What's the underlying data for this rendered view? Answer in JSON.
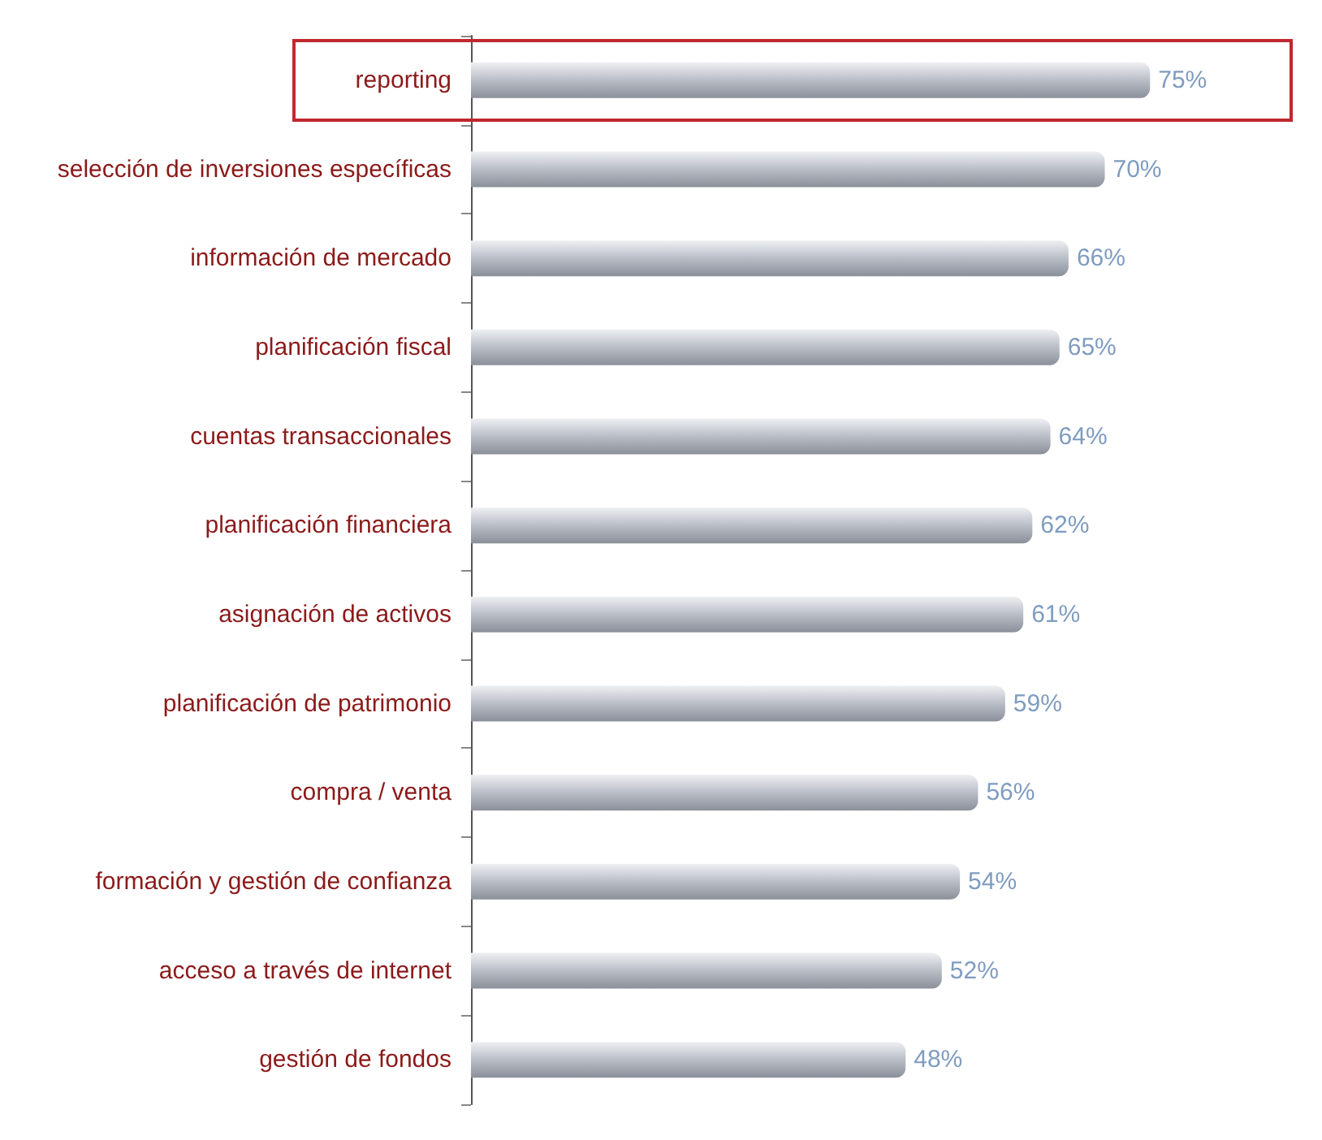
{
  "chart_data": {
    "type": "bar",
    "orientation": "horizontal",
    "categories": [
      "reporting",
      "selección de inversiones específicas",
      "información de mercado",
      "planificación fiscal",
      "cuentas transaccionales",
      "planificación financiera",
      "asignación de activos",
      "planificación de patrimonio",
      "compra / venta",
      "formación y gestión de confianza",
      "acceso a través de internet",
      "gestión de fondos"
    ],
    "values": [
      75,
      70,
      66,
      65,
      64,
      62,
      61,
      59,
      56,
      54,
      52,
      48
    ],
    "value_labels": [
      "75%",
      "70%",
      "66%",
      "65%",
      "64%",
      "62%",
      "61%",
      "59%",
      "56%",
      "54%",
      "52%",
      "48%"
    ],
    "color": "#b9bdc6"
  }
}
